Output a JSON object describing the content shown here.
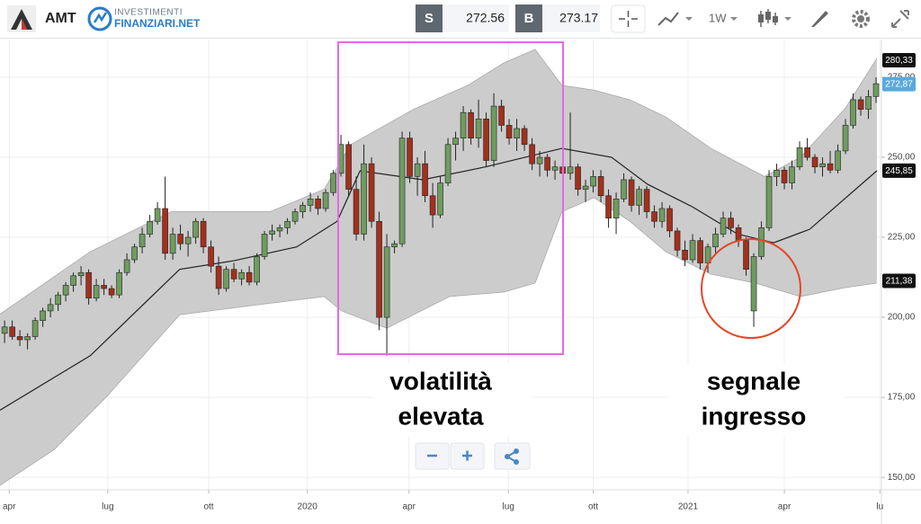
{
  "toolbar": {
    "symbol": "AMT",
    "logo_top": "INVESTIMENTI",
    "logo_bottom": "FINANZIARI.NET",
    "sell_label": "S",
    "sell_price": 272.56,
    "buy_label": "B",
    "buy_price": 273.17,
    "timeframe": "1W"
  },
  "chart_data": {
    "type": "candlestick",
    "up_color": "#6f9c5f",
    "down_color": "#a3301d",
    "band_color": "#cccccc",
    "grid": true,
    "xlim": [
      -0.6,
      114.7
    ],
    "ylim": [
      146.1,
      286.8
    ],
    "xticks": [
      {
        "value": 0.6,
        "label": "apr"
      },
      {
        "value": 13.5,
        "label": "lug"
      },
      {
        "value": 26.7,
        "label": "ott"
      },
      {
        "value": 39.6,
        "label": "2020"
      },
      {
        "value": 52.9,
        "label": "apr"
      },
      {
        "value": 65.9,
        "label": "lug"
      },
      {
        "value": 77,
        "label": "ott"
      },
      {
        "value": 89.4,
        "label": "2021"
      },
      {
        "value": 102,
        "label": "apr"
      },
      {
        "value": 114.5,
        "label": "lu"
      }
    ],
    "yticks": [
      {
        "value": 150,
        "label": "150,00"
      },
      {
        "value": 175,
        "label": "175,00"
      },
      {
        "value": 200,
        "label": "200,00"
      },
      {
        "value": 225,
        "label": "225,00"
      },
      {
        "value": 250,
        "label": "250,00"
      },
      {
        "value": 275,
        "label": "275,00"
      }
    ],
    "price_tags": [
      {
        "value": 280.33,
        "label": "280,33",
        "color": "#111111"
      },
      {
        "value": 272.87,
        "label": "272,87",
        "color": "#5aa9dc"
      },
      {
        "value": 245.85,
        "label": "245,85",
        "color": "#111111"
      },
      {
        "value": 211.38,
        "label": "211,38",
        "color": "#111111"
      }
    ],
    "ohlc": [
      [
        195,
        199,
        192,
        197
      ],
      [
        197,
        199,
        193,
        194
      ],
      [
        194,
        196,
        191,
        193
      ],
      [
        193,
        195,
        190,
        194
      ],
      [
        194,
        200,
        193,
        199
      ],
      [
        199,
        203,
        197,
        202
      ],
      [
        202,
        206,
        200,
        204
      ],
      [
        204,
        208,
        202,
        207
      ],
      [
        207,
        211,
        205,
        210
      ],
      [
        210,
        214,
        208,
        213
      ],
      [
        213,
        216,
        210,
        214
      ],
      [
        214,
        215,
        204,
        206
      ],
      [
        206,
        212,
        205,
        210
      ],
      [
        210,
        212,
        207,
        209
      ],
      [
        209,
        210,
        206,
        207
      ],
      [
        207,
        215,
        206,
        214
      ],
      [
        214,
        220,
        213,
        218
      ],
      [
        218,
        223,
        217,
        222
      ],
      [
        222,
        228,
        220,
        226
      ],
      [
        226,
        232,
        225,
        230
      ],
      [
        230,
        236,
        229,
        234
      ],
      [
        234,
        244,
        218,
        220
      ],
      [
        220,
        228,
        218,
        226
      ],
      [
        226,
        229,
        221,
        223
      ],
      [
        223,
        227,
        219,
        225
      ],
      [
        225,
        231,
        223,
        230
      ],
      [
        230,
        231,
        220,
        222
      ],
      [
        222,
        224,
        214,
        216
      ],
      [
        216,
        219,
        207,
        209
      ],
      [
        209,
        216,
        208,
        215
      ],
      [
        215,
        217,
        211,
        212
      ],
      [
        212,
        215,
        210,
        214
      ],
      [
        214,
        216,
        210,
        211
      ],
      [
        211,
        220,
        210,
        219
      ],
      [
        219,
        227,
        218,
        226
      ],
      [
        226,
        229,
        224,
        227
      ],
      [
        227,
        229,
        225,
        228
      ],
      [
        228,
        231,
        226,
        230
      ],
      [
        230,
        234,
        229,
        233
      ],
      [
        233,
        236,
        231,
        235
      ],
      [
        235,
        239,
        233,
        237
      ],
      [
        237,
        238,
        232,
        234
      ],
      [
        234,
        240,
        233,
        239
      ],
      [
        239,
        246,
        238,
        245
      ],
      [
        245,
        257,
        244,
        254
      ],
      [
        254,
        255,
        238,
        240
      ],
      [
        240,
        244,
        224,
        226
      ],
      [
        226,
        254,
        224,
        248
      ],
      [
        248,
        250,
        228,
        230
      ],
      [
        230,
        233,
        196,
        200
      ],
      [
        200,
        226,
        188,
        222
      ],
      [
        222,
        224,
        220,
        223
      ],
      [
        223,
        258,
        222,
        256
      ],
      [
        256,
        258,
        242,
        244
      ],
      [
        244,
        250,
        238,
        248
      ],
      [
        248,
        252,
        236,
        238
      ],
      [
        238,
        242,
        228,
        232
      ],
      [
        232,
        244,
        231,
        242
      ],
      [
        242,
        256,
        241,
        254
      ],
      [
        254,
        258,
        249,
        256
      ],
      [
        256,
        266,
        252,
        264
      ],
      [
        264,
        265,
        254,
        256
      ],
      [
        256,
        268,
        253,
        262
      ],
      [
        262,
        264,
        247,
        249
      ],
      [
        249,
        270,
        247,
        266
      ],
      [
        266,
        268,
        258,
        260
      ],
      [
        260,
        262,
        254,
        256
      ],
      [
        256,
        262,
        252,
        259
      ],
      [
        259,
        260,
        252,
        254
      ],
      [
        254,
        256,
        246,
        248
      ],
      [
        248,
        252,
        244,
        250
      ],
      [
        250,
        251,
        244,
        246
      ],
      [
        246,
        249,
        243,
        247
      ],
      [
        247,
        249,
        243,
        245
      ],
      [
        245,
        264,
        243,
        247
      ],
      [
        247,
        248,
        238,
        240
      ],
      [
        240,
        243,
        236,
        241
      ],
      [
        241,
        246,
        239,
        244
      ],
      [
        244,
        246,
        236,
        238
      ],
      [
        238,
        240,
        228,
        231
      ],
      [
        231,
        239,
        226,
        237
      ],
      [
        237,
        245,
        236,
        243
      ],
      [
        243,
        244,
        233,
        235
      ],
      [
        235,
        241,
        232,
        240
      ],
      [
        240,
        241,
        231,
        233
      ],
      [
        233,
        235,
        228,
        230
      ],
      [
        230,
        236,
        228,
        234
      ],
      [
        234,
        235,
        225,
        227
      ],
      [
        227,
        228,
        219,
        221
      ],
      [
        221,
        224,
        216,
        218
      ],
      [
        218,
        226,
        217,
        224
      ],
      [
        224,
        225,
        215,
        217
      ],
      [
        217,
        223,
        214,
        222
      ],
      [
        222,
        228,
        220,
        226
      ],
      [
        226,
        233,
        225,
        231
      ],
      [
        231,
        233,
        226,
        228
      ],
      [
        228,
        229,
        222,
        224
      ],
      [
        224,
        225,
        213,
        215
      ],
      [
        202,
        220,
        197,
        219
      ],
      [
        219,
        230,
        218,
        228
      ],
      [
        228,
        246,
        227,
        244
      ],
      [
        244,
        248,
        241,
        246
      ],
      [
        246,
        247,
        240,
        242
      ],
      [
        242,
        249,
        240,
        247
      ],
      [
        247,
        255,
        246,
        253
      ],
      [
        253,
        256,
        249,
        250
      ],
      [
        250,
        251,
        245,
        247
      ],
      [
        247,
        250,
        244,
        248
      ],
      [
        248,
        252,
        245,
        246
      ],
      [
        246,
        254,
        245,
        252
      ],
      [
        252,
        262,
        251,
        260
      ],
      [
        260,
        270,
        259,
        268
      ],
      [
        268,
        269,
        263,
        265
      ],
      [
        265,
        271,
        262,
        269
      ],
      [
        269,
        275,
        267,
        273
      ]
    ],
    "bands": {
      "upper": {
        "x": [
          -0.6,
          11.2,
          21.8,
          34.7,
          41.8,
          45.3,
          53.5,
          60.6,
          65.3,
          69.4,
          72.9,
          77.1,
          81.8,
          86.5,
          92.4,
          99.4,
          104.1,
          110,
          114.1
        ],
        "values": [
          201,
          220.5,
          233,
          233,
          240,
          254,
          265,
          272.5,
          279.5,
          283.7,
          272.5,
          271,
          268,
          262.6,
          252.8,
          244,
          250,
          265.4,
          280.9
        ]
      },
      "middle": {
        "x": [
          -0.6,
          11.2,
          22.9,
          30,
          38.2,
          43.5,
          46.5,
          54.7,
          62.9,
          72.9,
          79.4,
          84.1,
          90,
          95.9,
          100.6,
          105.3,
          114.1
        ],
        "values": [
          171,
          188,
          215,
          217.7,
          222,
          230,
          245.8,
          243,
          247,
          252.8,
          250,
          241.6,
          234.5,
          226,
          223.3,
          227.5,
          245.8
        ]
      },
      "lower": {
        "x": [
          -0.6,
          6.5,
          13.5,
          22.9,
          32.4,
          41.8,
          44.1,
          50,
          58.2,
          65.3,
          69.4,
          72.9,
          77.1,
          81.8,
          86.5,
          92.4,
          98.2,
          104.1,
          110,
          114.1
        ],
        "values": [
          147.5,
          158.7,
          175.6,
          200.8,
          203.7,
          206.5,
          202,
          196.6,
          206.5,
          207.9,
          210.7,
          233,
          237.4,
          230,
          220.5,
          213.5,
          210.7,
          206.5,
          209.3,
          210.7
        ]
      }
    },
    "annotations": [
      {
        "lines": [
          "volatilità",
          "elevata"
        ]
      },
      {
        "lines": [
          "segnale",
          "ingresso"
        ]
      }
    ]
  }
}
